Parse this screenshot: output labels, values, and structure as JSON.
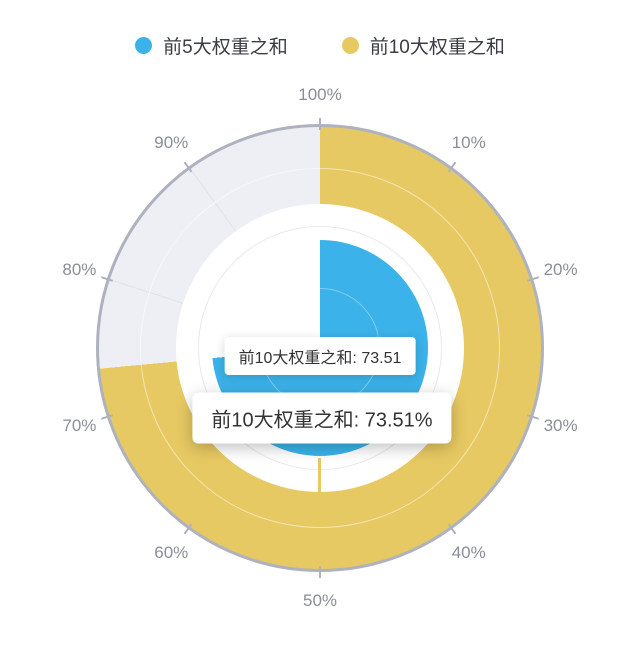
{
  "legend": {
    "items": [
      {
        "label": "前5大权重之和"
      },
      {
        "label": "前10大权重之和"
      }
    ]
  },
  "tooltips": {
    "hover": "前10大权重之和: 73.51",
    "pinned": "前10大权重之和: 73.51%"
  },
  "chart_data": {
    "type": "polar-gauge",
    "direction": "clockwise",
    "start_at": "top",
    "axis_range": [
      0,
      100
    ],
    "angular_ticks": [
      "100%",
      "10%",
      "20%",
      "30%",
      "40%",
      "50%",
      "60%",
      "70%",
      "80%",
      "90%"
    ],
    "series": [
      {
        "name": "前5大权重之和",
        "value": 73.5,
        "estimated": true,
        "ring": "inner",
        "color": "#3bb2e9"
      },
      {
        "name": "前10大权重之和",
        "value": 73.51,
        "estimated": false,
        "ring": "outer",
        "color": "#e7c963"
      }
    ],
    "unfilled_color": "#edeff5",
    "pointer_line": {
      "at_percent": 50,
      "color": "#e7c963"
    },
    "legend_position": "top",
    "grid": "on"
  },
  "colors": {
    "outer_border": "#aeb2bf",
    "grid_line": "#dfe2ea",
    "tick_label": "#8a8e98",
    "tooltip_text": "#333333",
    "background": "#ffffff"
  }
}
